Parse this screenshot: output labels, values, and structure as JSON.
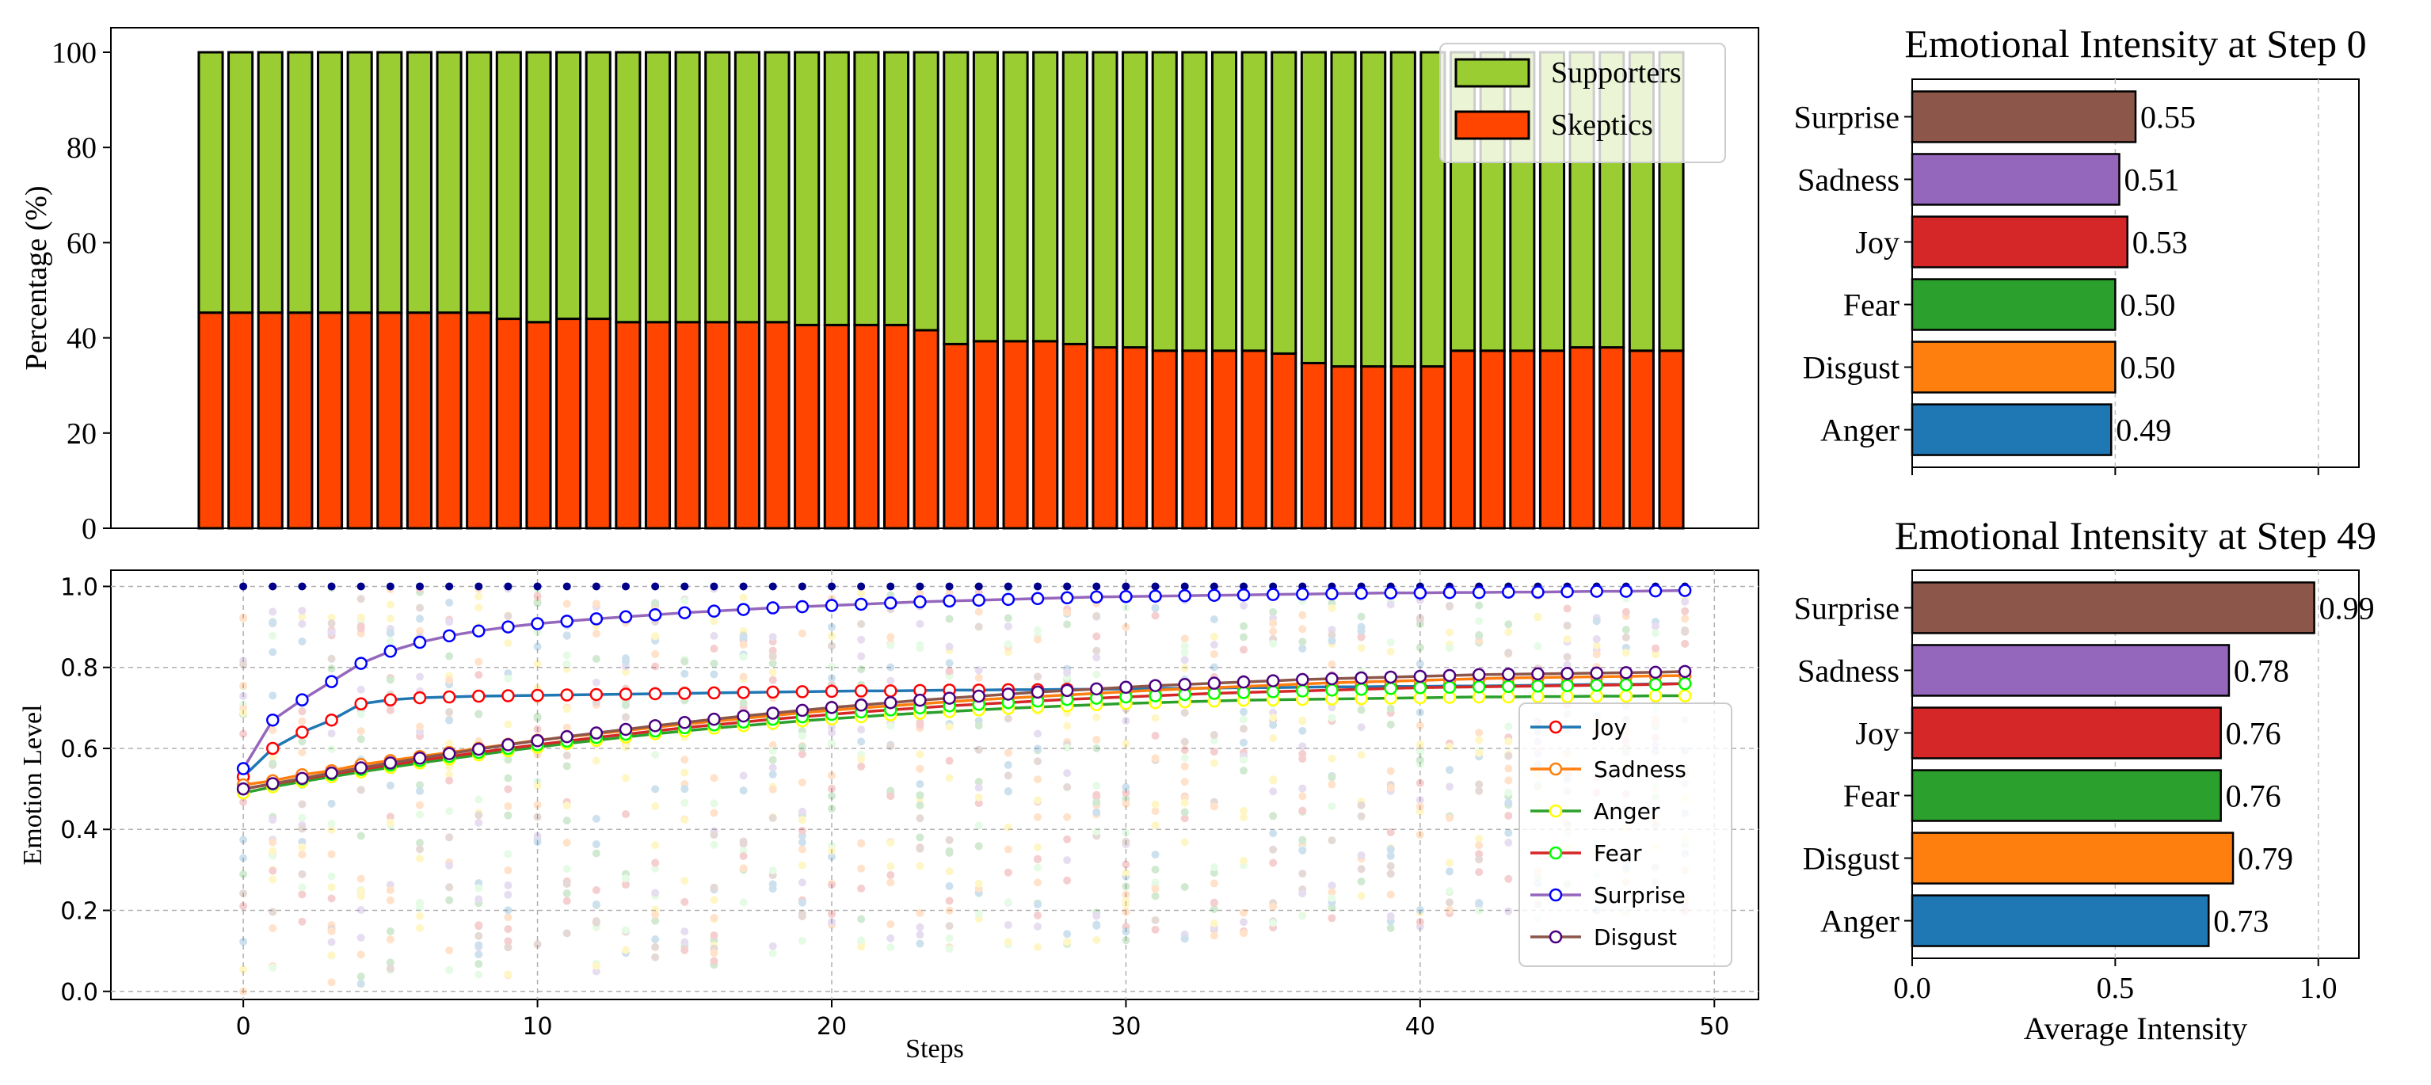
{
  "chart_data": [
    {
      "id": "stacked",
      "type": "bar",
      "stacked": true,
      "xlabel": "",
      "ylabel": "Percentage (%)",
      "ylim": [
        0,
        100
      ],
      "yticks": [
        0,
        20,
        40,
        60,
        80,
        100
      ],
      "legend_position": "top-right",
      "series": [
        {
          "name": "Supporters",
          "color": "#9ACD32",
          "values": [
            54.7,
            54.7,
            54.7,
            54.7,
            54.7,
            54.7,
            54.7,
            54.7,
            54.7,
            54.7,
            56.0,
            56.7,
            56.0,
            56.0,
            56.7,
            56.7,
            56.7,
            56.7,
            56.7,
            56.7,
            57.3,
            57.3,
            57.3,
            57.3,
            58.4,
            61.3,
            60.7,
            60.7,
            60.7,
            61.3,
            62.0,
            62.0,
            62.7,
            62.7,
            62.7,
            62.7,
            63.3,
            65.3,
            66.0,
            66.0,
            66.0,
            66.0,
            62.7,
            62.7,
            62.7,
            62.7,
            62.0,
            62.0,
            62.7,
            62.7
          ]
        },
        {
          "name": "Skeptics",
          "color": "#FF4500",
          "values": [
            45.3,
            45.3,
            45.3,
            45.3,
            45.3,
            45.3,
            45.3,
            45.3,
            45.3,
            45.3,
            44.0,
            43.3,
            44.0,
            44.0,
            43.3,
            43.3,
            43.3,
            43.3,
            43.3,
            43.3,
            42.7,
            42.7,
            42.7,
            42.7,
            41.6,
            38.7,
            39.3,
            39.3,
            39.3,
            38.7,
            38.0,
            38.0,
            37.3,
            37.3,
            37.3,
            37.3,
            36.7,
            34.7,
            34.0,
            34.0,
            34.0,
            34.0,
            37.3,
            37.3,
            37.3,
            37.3,
            38.0,
            38.0,
            37.3,
            37.3
          ]
        }
      ]
    },
    {
      "id": "emotion_lines",
      "type": "line",
      "xlabel": "Steps",
      "ylabel": "Emotion Level",
      "xlim": [
        -4.5,
        51.5
      ],
      "ylim": [
        -0.02,
        1.04
      ],
      "xticks": [
        0,
        10,
        20,
        30,
        40,
        50
      ],
      "yticks": [
        0.0,
        0.2,
        0.4,
        0.6,
        0.8,
        1.0
      ],
      "grid": true,
      "legend_position": "center-right",
      "scatter_note": "background per-agent emotion values drawn as faint dots at each step",
      "series": [
        {
          "name": "Joy",
          "line_color": "#1F77B4",
          "marker_color": "#FF0000",
          "values": [
            0.53,
            0.6,
            0.64,
            0.67,
            0.71,
            0.72,
            0.725,
            0.727,
            0.729,
            0.73,
            0.731,
            0.732,
            0.733,
            0.734,
            0.735,
            0.736,
            0.737,
            0.738,
            0.739,
            0.74,
            0.741,
            0.742,
            0.742,
            0.743,
            0.744,
            0.744,
            0.745,
            0.745,
            0.746,
            0.746,
            0.747,
            0.748,
            0.748,
            0.749,
            0.75,
            0.75,
            0.751,
            0.752,
            0.752,
            0.753,
            0.753,
            0.754,
            0.754,
            0.755,
            0.756,
            0.757,
            0.758,
            0.758,
            0.759,
            0.76
          ]
        },
        {
          "name": "Sadness",
          "line_color": "#FF7F0E",
          "marker_color": "#FF7F0E",
          "values": [
            0.51,
            0.52,
            0.535,
            0.545,
            0.56,
            0.57,
            0.58,
            0.59,
            0.6,
            0.61,
            0.62,
            0.628,
            0.636,
            0.644,
            0.652,
            0.66,
            0.667,
            0.674,
            0.681,
            0.688,
            0.694,
            0.7,
            0.705,
            0.71,
            0.715,
            0.72,
            0.724,
            0.728,
            0.732,
            0.736,
            0.74,
            0.744,
            0.747,
            0.75,
            0.753,
            0.756,
            0.759,
            0.762,
            0.764,
            0.766,
            0.768,
            0.77,
            0.772,
            0.774,
            0.775,
            0.776,
            0.777,
            0.778,
            0.779,
            0.78
          ]
        },
        {
          "name": "Anger",
          "line_color": "#2CA02C",
          "marker_color": "#FFFF00",
          "values": [
            0.49,
            0.505,
            0.518,
            0.53,
            0.542,
            0.553,
            0.564,
            0.574,
            0.584,
            0.594,
            0.603,
            0.612,
            0.62,
            0.628,
            0.636,
            0.643,
            0.65,
            0.656,
            0.662,
            0.668,
            0.673,
            0.678,
            0.683,
            0.687,
            0.691,
            0.695,
            0.699,
            0.702,
            0.705,
            0.708,
            0.711,
            0.713,
            0.715,
            0.717,
            0.719,
            0.72,
            0.721,
            0.722,
            0.723,
            0.724,
            0.725,
            0.726,
            0.727,
            0.727,
            0.728,
            0.728,
            0.729,
            0.729,
            0.73,
            0.73
          ]
        },
        {
          "name": "Fear",
          "line_color": "#D62728",
          "marker_color": "#00FF00",
          "values": [
            0.5,
            0.512,
            0.524,
            0.536,
            0.548,
            0.559,
            0.57,
            0.58,
            0.59,
            0.6,
            0.609,
            0.618,
            0.627,
            0.635,
            0.643,
            0.651,
            0.658,
            0.665,
            0.672,
            0.678,
            0.684,
            0.69,
            0.695,
            0.7,
            0.705,
            0.709,
            0.713,
            0.717,
            0.721,
            0.724,
            0.727,
            0.73,
            0.733,
            0.736,
            0.738,
            0.74,
            0.742,
            0.744,
            0.746,
            0.748,
            0.75,
            0.751,
            0.752,
            0.753,
            0.754,
            0.755,
            0.756,
            0.757,
            0.758,
            0.76
          ]
        },
        {
          "name": "Surprise",
          "line_color": "#9467BD",
          "marker_color": "#0000FF",
          "values": [
            0.55,
            0.67,
            0.72,
            0.765,
            0.81,
            0.84,
            0.862,
            0.878,
            0.89,
            0.9,
            0.908,
            0.914,
            0.92,
            0.925,
            0.93,
            0.935,
            0.939,
            0.943,
            0.947,
            0.95,
            0.953,
            0.956,
            0.959,
            0.962,
            0.964,
            0.966,
            0.968,
            0.97,
            0.972,
            0.974,
            0.975,
            0.976,
            0.977,
            0.978,
            0.979,
            0.98,
            0.981,
            0.982,
            0.983,
            0.984,
            0.984,
            0.985,
            0.985,
            0.986,
            0.986,
            0.987,
            0.988,
            0.988,
            0.989,
            0.99
          ]
        },
        {
          "name": "Disgust",
          "line_color": "#8C564B",
          "marker_color": "#4B0082",
          "values": [
            0.5,
            0.513,
            0.526,
            0.539,
            0.552,
            0.564,
            0.576,
            0.587,
            0.598,
            0.609,
            0.619,
            0.629,
            0.638,
            0.647,
            0.656,
            0.664,
            0.672,
            0.68,
            0.687,
            0.694,
            0.701,
            0.707,
            0.713,
            0.719,
            0.724,
            0.729,
            0.734,
            0.739,
            0.743,
            0.747,
            0.751,
            0.755,
            0.758,
            0.761,
            0.764,
            0.767,
            0.77,
            0.772,
            0.774,
            0.776,
            0.778,
            0.78,
            0.782,
            0.783,
            0.784,
            0.785,
            0.786,
            0.787,
            0.788,
            0.79
          ]
        }
      ]
    },
    {
      "id": "step0",
      "type": "bar",
      "orientation": "horizontal",
      "title": "Emotional Intensity at Step 0",
      "xlim": [
        0,
        1.1
      ],
      "categories": [
        "Surprise",
        "Sadness",
        "Joy",
        "Fear",
        "Disgust",
        "Anger"
      ],
      "values": [
        0.55,
        0.51,
        0.53,
        0.5,
        0.5,
        0.49
      ],
      "labels": [
        "0.55",
        "0.51",
        "0.53",
        "0.50",
        "0.50",
        "0.49"
      ],
      "colors": [
        "#8C564B",
        "#9467BD",
        "#D62728",
        "#2CA02C",
        "#FF7F0E",
        "#1F77B4"
      ]
    },
    {
      "id": "step49",
      "type": "bar",
      "orientation": "horizontal",
      "title": "Emotional Intensity at Step 49",
      "xlabel": "Average Intensity",
      "xlim": [
        0,
        1.1
      ],
      "xticks": [
        0.0,
        0.5,
        1.0
      ],
      "xtick_labels": [
        "0.0",
        "0.5",
        "1.0"
      ],
      "categories": [
        "Surprise",
        "Sadness",
        "Joy",
        "Fear",
        "Disgust",
        "Anger"
      ],
      "values": [
        0.99,
        0.78,
        0.76,
        0.76,
        0.79,
        0.73
      ],
      "labels": [
        "0.99",
        "0.78",
        "0.76",
        "0.76",
        "0.79",
        "0.73"
      ],
      "colors": [
        "#8C564B",
        "#9467BD",
        "#D62728",
        "#2CA02C",
        "#FF7F0E",
        "#1F77B4"
      ]
    }
  ]
}
